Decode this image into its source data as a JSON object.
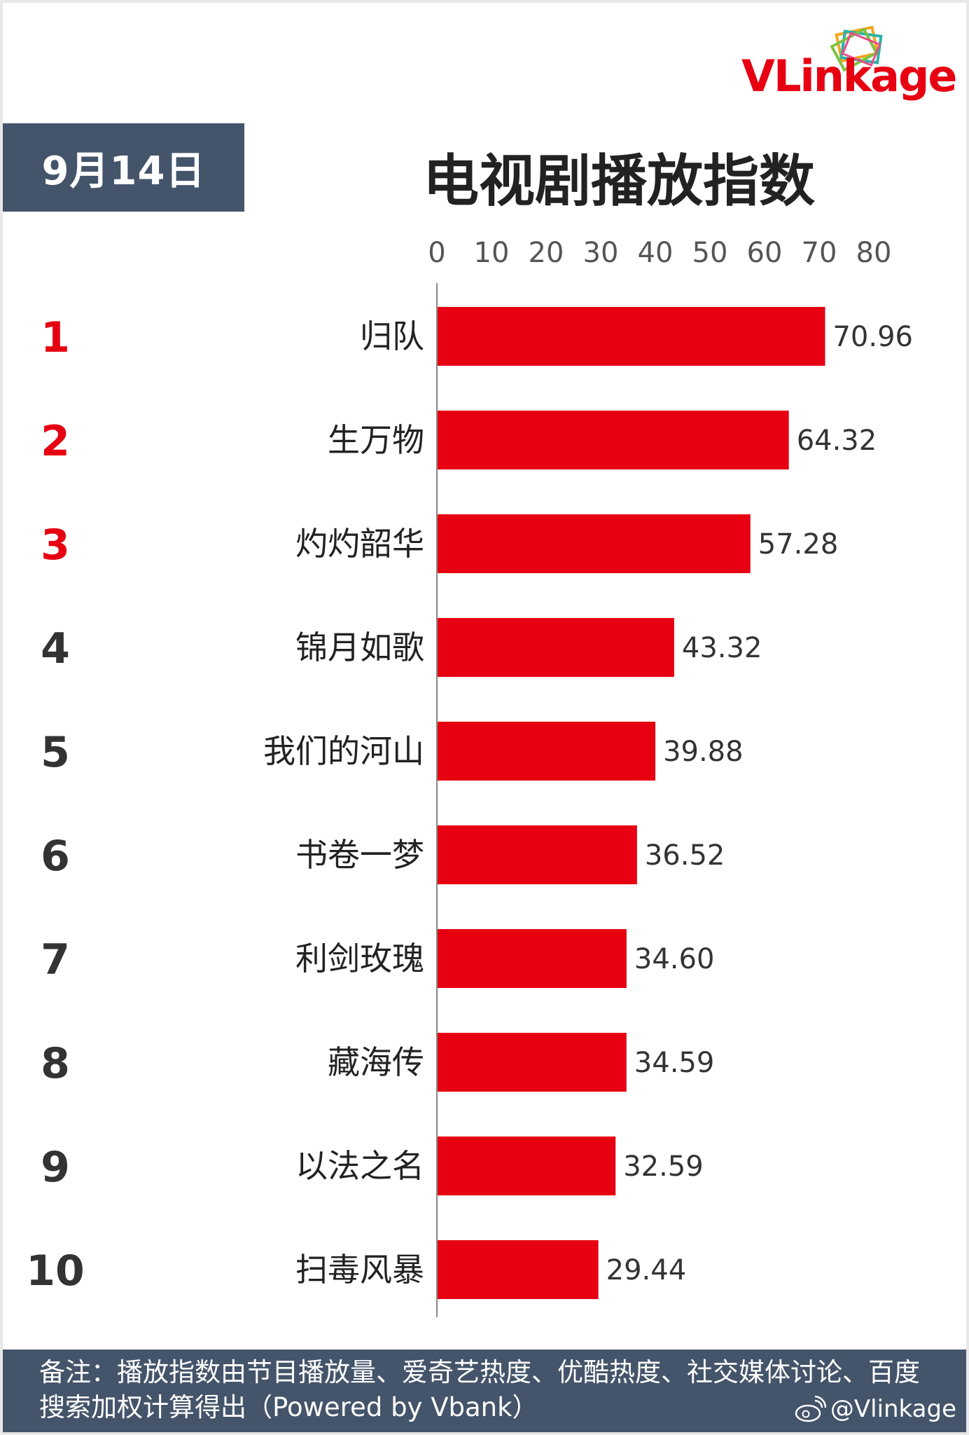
{
  "brand": {
    "logo_text": "VLinkage",
    "brand_color": "#e60012"
  },
  "header": {
    "date": "9月14日",
    "title": "电视剧播放指数"
  },
  "chart_data": {
    "type": "bar",
    "orientation": "horizontal",
    "title": "电视剧播放指数",
    "xlim": [
      0,
      80
    ],
    "xticks": [
      "0",
      "10",
      "20",
      "30",
      "40",
      "50",
      "60",
      "70",
      "80"
    ],
    "ranks": [
      "1",
      "2",
      "3",
      "4",
      "5",
      "6",
      "7",
      "8",
      "9",
      "10"
    ],
    "categories": [
      "归队",
      "生万物",
      "灼灼韶华",
      "锦月如歌",
      "我们的河山",
      "书卷一梦",
      "利剑玫瑰",
      "藏海传",
      "以法之名",
      "扫毒风暴"
    ],
    "values": [
      70.96,
      64.32,
      57.28,
      43.32,
      39.88,
      36.52,
      34.6,
      34.59,
      32.59,
      29.44
    ],
    "value_labels": [
      "70.96",
      "64.32",
      "57.28",
      "43.32",
      "39.88",
      "36.52",
      "34.60",
      "34.59",
      "32.59",
      "29.44"
    ],
    "bar_color": "#e60012",
    "top_rank_color": "#e60012",
    "rank_color": "#333333",
    "grid": false
  },
  "footer": {
    "note": "备注：播放指数由节目播放量、爱奇艺热度、优酷热度、社交媒体讨论、百度搜索加权计算得出（Powered by Vbank）",
    "weibo_handle": "@Vlinkage",
    "background_color": "#44546a"
  }
}
